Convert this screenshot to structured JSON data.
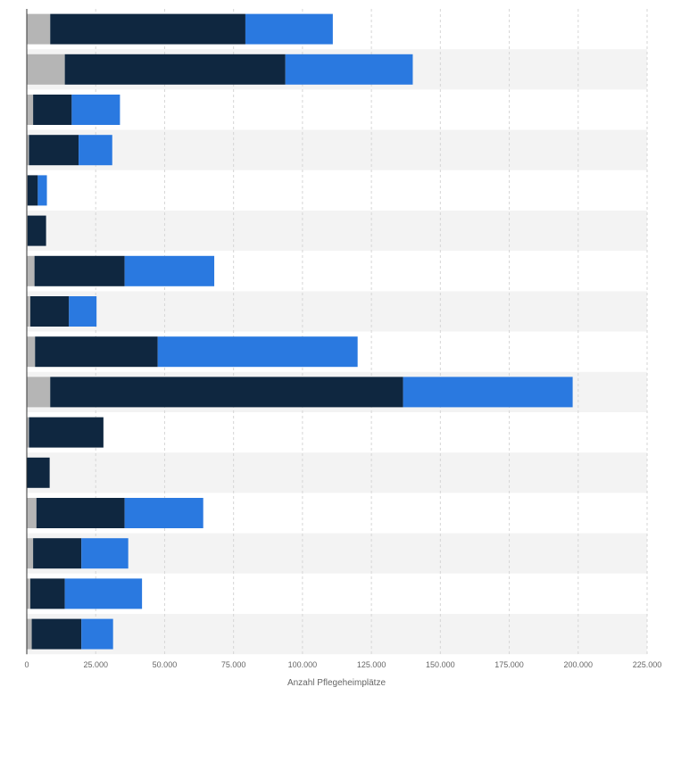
{
  "chart_data": {
    "type": "bar",
    "orientation": "horizontal",
    "stacked": true,
    "categories": [
      "",
      "",
      "",
      "",
      "",
      "",
      "",
      "",
      "",
      "",
      "",
      "",
      "",
      "",
      "",
      ""
    ],
    "series": [
      {
        "color": "#b5b5b5",
        "values": [
          8500,
          13800,
          2300,
          800,
          300,
          300,
          2800,
          1300,
          3000,
          8500,
          800,
          0,
          3500,
          2300,
          1300,
          1800
        ]
      },
      {
        "color": "#0f2740",
        "values": [
          70800,
          80000,
          14000,
          18000,
          3700,
          6700,
          32700,
          14000,
          44500,
          128000,
          27000,
          8300,
          32000,
          17500,
          12500,
          18000
        ]
      },
      {
        "color": "#2a79e0",
        "values": [
          31700,
          46200,
          17500,
          12200,
          3300,
          0,
          32500,
          10000,
          72500,
          61500,
          0,
          0,
          28500,
          17000,
          28000,
          11500
        ]
      }
    ],
    "xlabel": "Anzahl Pflegeheimplätze",
    "ylabel": "",
    "xlim": [
      0,
      225000
    ],
    "x_ticks": [
      0,
      25000,
      50000,
      75000,
      100000,
      125000,
      150000,
      175000,
      200000,
      225000
    ],
    "x_tick_labels": [
      "0",
      "25.000",
      "50.000",
      "75.000",
      "100.000",
      "125.000",
      "150.000",
      "175.000",
      "200.000",
      "225.000"
    ],
    "grid": true,
    "legend": "none"
  }
}
